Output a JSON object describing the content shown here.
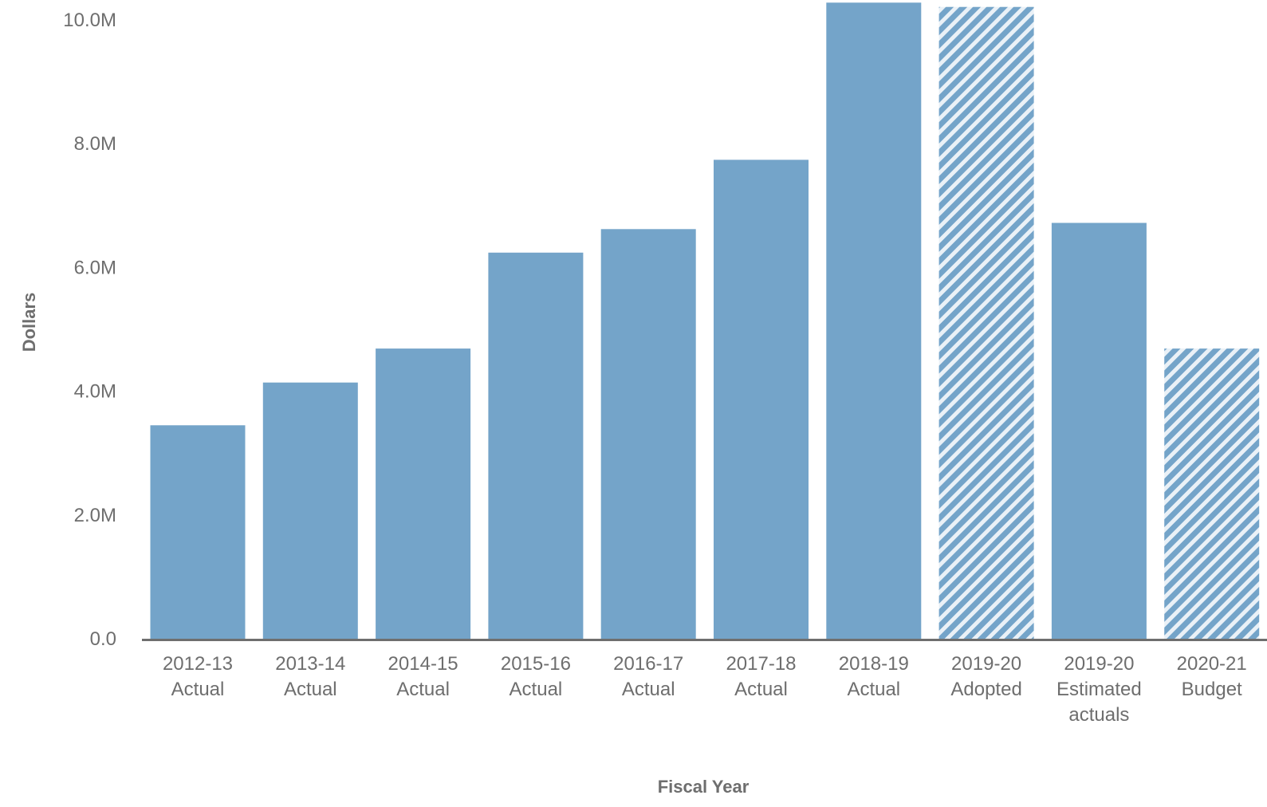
{
  "chart_data": {
    "type": "bar",
    "title": "",
    "xlabel": "Fiscal Year",
    "ylabel": "Dollars",
    "ylim": [
      0,
      10.3
    ],
    "y_unit_suffix": "M",
    "y_ticks": [
      {
        "value": 0,
        "label": "0.0"
      },
      {
        "value": 2,
        "label": "2.0M"
      },
      {
        "value": 4,
        "label": "4.0M"
      },
      {
        "value": 6,
        "label": "6.0M"
      },
      {
        "value": 8,
        "label": "8.0M"
      },
      {
        "value": 10,
        "label": "10.0M"
      }
    ],
    "grid": false,
    "legend": "none",
    "bar_color": "#74a4c9",
    "axis_color": "#6e6e6e",
    "categories": [
      {
        "lines": [
          "2012-13",
          "Actual"
        ],
        "value": 3.45,
        "pattern": "solid"
      },
      {
        "lines": [
          "2013-14",
          "Actual"
        ],
        "value": 4.14,
        "pattern": "solid"
      },
      {
        "lines": [
          "2014-15",
          "Actual"
        ],
        "value": 4.69,
        "pattern": "solid"
      },
      {
        "lines": [
          "2015-16",
          "Actual"
        ],
        "value": 6.24,
        "pattern": "solid"
      },
      {
        "lines": [
          "2016-17",
          "Actual"
        ],
        "value": 6.62,
        "pattern": "solid"
      },
      {
        "lines": [
          "2017-18",
          "Actual"
        ],
        "value": 7.74,
        "pattern": "solid"
      },
      {
        "lines": [
          "2018-19",
          "Actual"
        ],
        "value": 10.28,
        "pattern": "solid"
      },
      {
        "lines": [
          "2019-20",
          "Adopted"
        ],
        "value": 10.21,
        "pattern": "hatched"
      },
      {
        "lines": [
          "2019-20",
          "Estimated",
          "actuals"
        ],
        "value": 6.72,
        "pattern": "solid"
      },
      {
        "lines": [
          "2020-21",
          "Budget"
        ],
        "value": 4.69,
        "pattern": "hatched"
      }
    ]
  }
}
